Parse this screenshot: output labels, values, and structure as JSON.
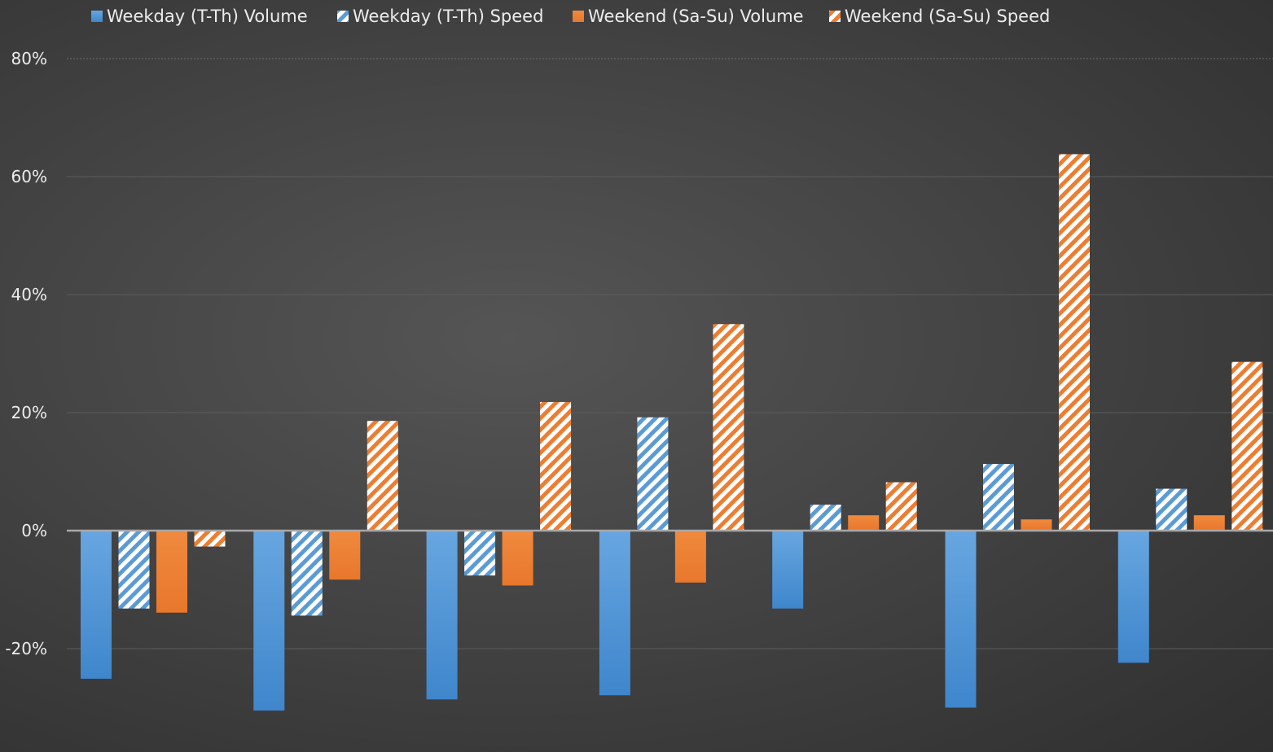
{
  "chart_data": {
    "type": "bar",
    "title": "",
    "xlabel": "",
    "ylabel": "",
    "ylim": [
      -30,
      80
    ],
    "y_ticks": [
      "80%",
      "60%",
      "40%",
      "20%",
      "0%",
      "-20%"
    ],
    "y_tick_values": [
      80,
      60,
      40,
      20,
      0,
      -20
    ],
    "categories": [
      "",
      "",
      "",
      "",
      "",
      "",
      ""
    ],
    "legend_position": "top",
    "grid": true,
    "series": [
      {
        "name": "Weekday (T-Th) Volume",
        "pattern": "solid",
        "color": "#5b9bd5",
        "values": [
          -25.1,
          -30.5,
          -28.6,
          -27.9,
          -13.2,
          -30.0,
          -22.4
        ]
      },
      {
        "name": "Weekday (T-Th) Speed",
        "pattern": "hatched",
        "color": "#5b9bd5",
        "values": [
          -13.2,
          -14.4,
          -7.6,
          19.2,
          4.4,
          11.3,
          7.1
        ]
      },
      {
        "name": "Weekend (Sa-Su) Volume",
        "pattern": "solid",
        "color": "#ed7d31",
        "values": [
          -13.9,
          -8.3,
          -9.3,
          -8.8,
          2.6,
          1.9,
          2.6
        ]
      },
      {
        "name": "Weekend (Sa-Su) Speed",
        "pattern": "hatched",
        "color": "#ed7d31",
        "values": [
          -2.7,
          18.6,
          21.8,
          35.0,
          8.2,
          63.8,
          28.6
        ]
      }
    ]
  }
}
